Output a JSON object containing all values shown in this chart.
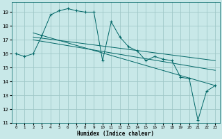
{
  "xlabel": "Humidex (Indice chaleur)",
  "bg_color": "#c8e8e8",
  "grid_color": "#a0c8c8",
  "line_color": "#006666",
  "xlim": [
    -0.5,
    23.5
  ],
  "ylim": [
    11,
    19.7
  ],
  "xticks": [
    0,
    1,
    2,
    3,
    4,
    5,
    6,
    7,
    8,
    9,
    10,
    11,
    12,
    13,
    14,
    15,
    16,
    17,
    18,
    19,
    20,
    21,
    22,
    23
  ],
  "yticks": [
    11,
    12,
    13,
    14,
    15,
    16,
    17,
    18,
    19
  ],
  "line1_x": [
    0,
    1,
    2,
    3,
    4,
    5,
    6,
    7,
    8,
    9,
    10,
    11,
    12,
    13,
    14,
    15,
    16,
    17,
    18,
    19,
    20,
    21,
    22,
    23
  ],
  "line1_y": [
    16.0,
    15.8,
    16.0,
    17.3,
    18.8,
    19.1,
    19.25,
    19.1,
    19.0,
    19.0,
    15.5,
    18.3,
    17.2,
    16.5,
    16.2,
    15.5,
    15.8,
    15.6,
    15.5,
    14.3,
    14.2,
    11.2,
    13.3,
    13.7
  ],
  "line2_x": [
    2,
    23
  ],
  "line2_y": [
    17.5,
    13.7
  ],
  "line3_x": [
    2,
    23
  ],
  "line3_y": [
    17.2,
    15.5
  ],
  "line4_x": [
    2,
    23
  ],
  "line4_y": [
    17.0,
    14.8
  ]
}
